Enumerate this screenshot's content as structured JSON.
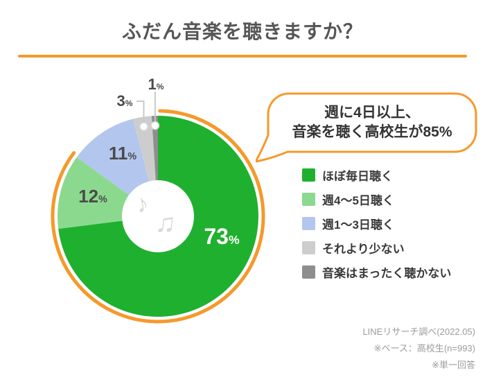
{
  "header": {
    "title": "ふだん音楽を聴きますか？",
    "accent_color": "#F5992B"
  },
  "callout": {
    "line1": "週に4日以上、",
    "line2": "音楽を聴く高校生が85%",
    "border_color": "#F5992B"
  },
  "chart_data": {
    "type": "pie",
    "donut": true,
    "title": "ふだん音楽を聴きますか？",
    "unit": "%",
    "start_angle_deg": 0,
    "direction": "clockwise",
    "slices": [
      {
        "label": "ほぼ毎日聴く",
        "value": 73,
        "color": "#1FB02F"
      },
      {
        "label": "週4〜5日聴く",
        "value": 12,
        "color": "#8BD98F"
      },
      {
        "label": "週1〜3日聴く",
        "value": 11,
        "color": "#B3C6ED"
      },
      {
        "label": "それより少ない",
        "value": 3,
        "color": "#CDCDCD"
      },
      {
        "label": "音楽はまったく聴かない",
        "value": 1,
        "color": "#8E8E8E"
      }
    ],
    "highlight": {
      "covers_percent": 85,
      "color": "#F5992B"
    },
    "legend_position": "right"
  },
  "center_icon": {
    "name": "music-notes",
    "glyph1": "♪",
    "glyph2": "♫",
    "color": "#D9D9D9"
  },
  "footer": {
    "lines": [
      "LINEリサーチ調べ(2022.05)",
      "※ベース：高校生(n=993)",
      "※単一回答"
    ]
  }
}
